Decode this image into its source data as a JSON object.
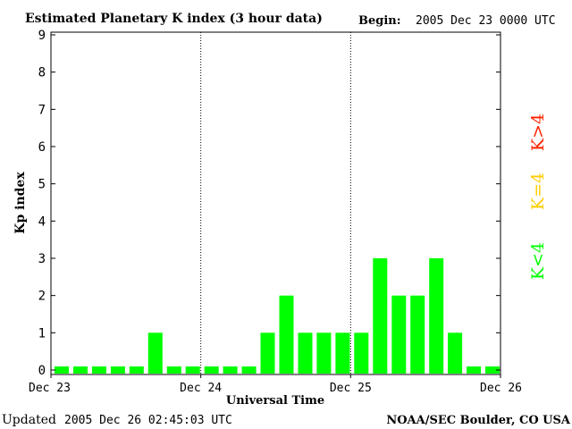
{
  "header": {
    "title": "Estimated Planetary K index (3 hour data)",
    "begin_label": "Begin:",
    "begin_value": "2005 Dec 23 0000 UTC"
  },
  "footer": {
    "updated_label": "Updated",
    "updated_value": "2005 Dec 26 02:45:03 UTC",
    "source": "NOAA/SEC Boulder, CO USA"
  },
  "colors": {
    "low": "#00ff00",
    "moderate": "#ffcc00",
    "high": "#ff2200",
    "axis": "#000000",
    "background": "#ffffff"
  },
  "chart_data": {
    "type": "bar",
    "title": "Estimated Planetary K index (3 hour data)",
    "xlabel": "Universal Time",
    "ylabel": "Kp index",
    "ylim": [
      0,
      9
    ],
    "yticks": [
      0,
      1,
      2,
      3,
      4,
      5,
      6,
      7,
      8,
      9
    ],
    "xtick_labels": [
      "Dec 23",
      "Dec 24",
      "Dec 25",
      "Dec 26"
    ],
    "interval_hours": 3,
    "values": [
      0,
      0,
      0,
      0,
      0,
      1,
      0,
      0,
      0,
      0,
      0,
      1,
      2,
      1,
      1,
      1,
      1,
      3,
      2,
      2,
      3,
      1,
      0,
      0
    ],
    "legend": [
      {
        "label": "K<4",
        "color": "#00ff00"
      },
      {
        "label": "K=4",
        "color": "#ffcc00"
      },
      {
        "label": "K>4",
        "color": "#ff2200"
      }
    ],
    "day_separators": "dotted",
    "grid": false
  }
}
